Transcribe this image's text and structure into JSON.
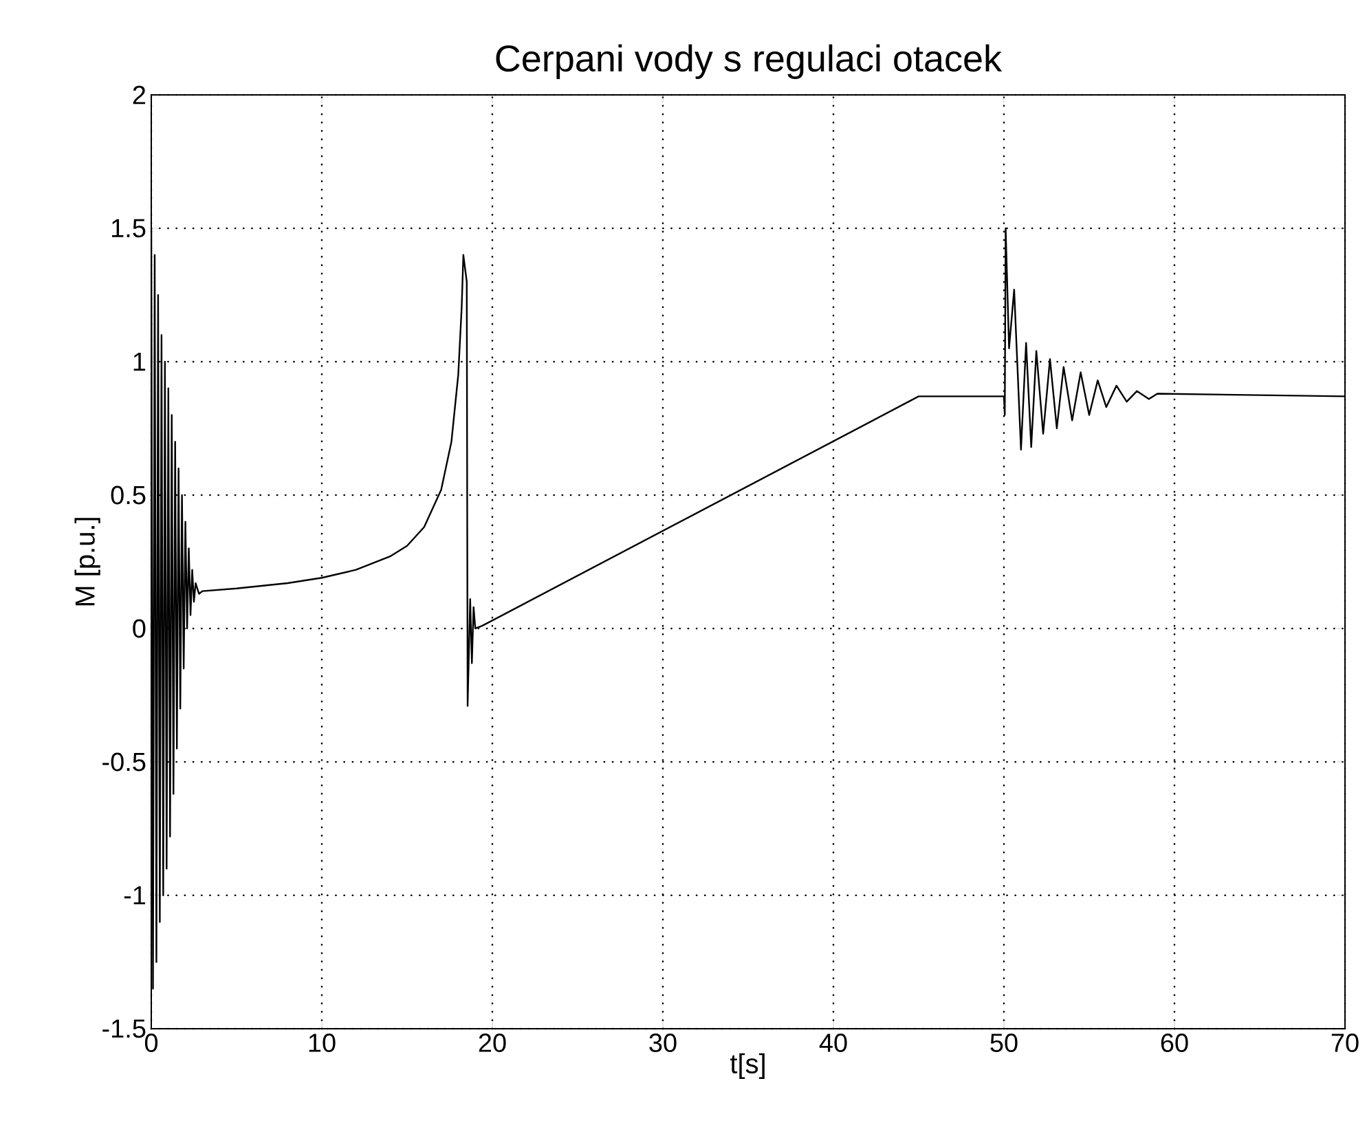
{
  "chart_data": {
    "type": "line",
    "title": "Cerpani vody s regulaci otacek",
    "xlabel": "t[s]",
    "ylabel": "M [p.u.]",
    "xlim": [
      0,
      70
    ],
    "ylim": [
      -1.5,
      2
    ],
    "xticks": [
      0,
      10,
      20,
      30,
      40,
      50,
      60,
      70
    ],
    "yticks": [
      -1.5,
      -1,
      -0.5,
      0,
      0.5,
      1,
      1.5,
      2
    ],
    "grid": true,
    "series": [
      {
        "color": "#000000",
        "x": [
          0,
          0.1,
          0.2,
          0.3,
          0.4,
          0.5,
          0.6,
          0.7,
          0.8,
          0.9,
          1.0,
          1.1,
          1.2,
          1.3,
          1.4,
          1.5,
          1.6,
          1.7,
          1.8,
          1.9,
          2.0,
          2.1,
          2.2,
          2.3,
          2.4,
          2.5,
          2.6,
          2.8,
          3,
          5,
          8,
          10,
          12,
          14,
          15,
          16,
          17,
          17.6,
          18,
          18.2,
          18.3,
          18.5,
          18.55,
          18.7,
          18.8,
          18.9,
          19.0,
          19.4,
          45,
          50,
          50.05,
          50.1,
          50.3,
          50.6,
          51.0,
          51.3,
          51.6,
          51.9,
          52.3,
          52.7,
          53.1,
          53.5,
          54,
          54.5,
          55,
          55.5,
          56,
          56.6,
          57.2,
          57.8,
          58.5,
          59,
          70
        ],
        "values": [
          1.5,
          -1.35,
          1.4,
          -1.25,
          1.25,
          -1.1,
          1.1,
          -1.0,
          1.0,
          -0.9,
          0.9,
          -0.78,
          0.8,
          -0.62,
          0.7,
          -0.45,
          0.6,
          -0.3,
          0.5,
          -0.15,
          0.4,
          0.0,
          0.3,
          0.05,
          0.22,
          0.1,
          0.17,
          0.13,
          0.14,
          0.15,
          0.17,
          0.19,
          0.22,
          0.27,
          0.31,
          0.38,
          0.52,
          0.7,
          0.95,
          1.2,
          1.4,
          1.3,
          -0.29,
          0.11,
          -0.13,
          0.08,
          0.0,
          0.01,
          0.87,
          0.87,
          0.8,
          1.5,
          1.05,
          1.27,
          0.67,
          1.07,
          0.68,
          1.04,
          0.73,
          1.01,
          0.75,
          0.98,
          0.78,
          0.96,
          0.8,
          0.93,
          0.83,
          0.91,
          0.85,
          0.89,
          0.86,
          0.88,
          0.87
        ]
      }
    ]
  }
}
